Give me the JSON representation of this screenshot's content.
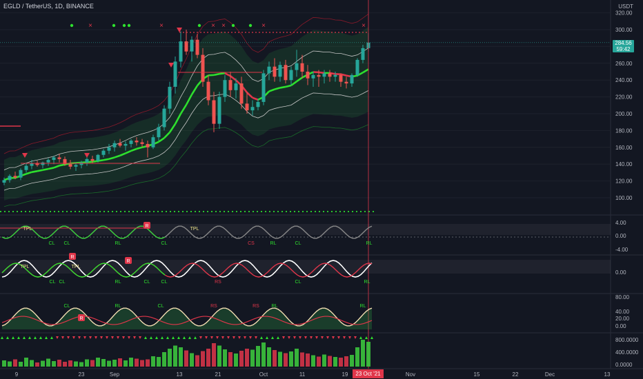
{
  "header": {
    "symbol_title": "EGLD / TetherUS, 1D, BINANCE",
    "currency": "USDT"
  },
  "last_price": {
    "price": "284.56",
    "countdown": "59:42"
  },
  "cursor_date": "23 Oct '21",
  "colors": {
    "background": "#131722",
    "up": "#26a69a",
    "down": "#ef5350",
    "ma_green": "#2ee02e",
    "ma_red": "#e0364a"
  },
  "osc_labels": {
    "p1": [
      {
        "t": "TPL",
        "c": "#f0e68c"
      },
      {
        "t": "CL",
        "c": "#2ee02e"
      },
      {
        "t": "CL",
        "c": "#2ee02e"
      },
      {
        "t": "RL",
        "c": "#2ee02e"
      },
      {
        "t": "CL",
        "c": "#2ee02e"
      },
      {
        "t": "TPL",
        "c": "#f0e68c"
      },
      {
        "t": "CS",
        "c": "#e0364a"
      },
      {
        "t": "RL",
        "c": "#2ee02e"
      },
      {
        "t": "CL",
        "c": "#2ee02e"
      },
      {
        "t": "RL",
        "c": "#2ee02e"
      }
    ],
    "p2": [
      {
        "t": "TPL",
        "c": "#f0e68c"
      },
      {
        "t": "TPL",
        "c": "#f0e68c"
      },
      {
        "t": "CL",
        "c": "#2ee02e"
      },
      {
        "t": "CL",
        "c": "#2ee02e"
      },
      {
        "t": "RL",
        "c": "#2ee02e"
      },
      {
        "t": "CL",
        "c": "#2ee02e"
      },
      {
        "t": "CL",
        "c": "#2ee02e"
      },
      {
        "t": "RS",
        "c": "#e0364a"
      },
      {
        "t": "CL",
        "c": "#2ee02e"
      },
      {
        "t": "RL",
        "c": "#2ee02e"
      }
    ],
    "p3": [
      {
        "t": "CL",
        "c": "#2ee02e"
      },
      {
        "t": "RL",
        "c": "#2ee02e"
      },
      {
        "t": "CL",
        "c": "#2ee02e"
      },
      {
        "t": "RS",
        "c": "#e0364a"
      },
      {
        "t": "RS",
        "c": "#e0364a"
      },
      {
        "t": "RL",
        "c": "#2ee02e"
      },
      {
        "t": "RL",
        "c": "#2ee02e"
      }
    ],
    "badge_r": "R"
  },
  "chart_data": {
    "type": "candlestick",
    "symbol": "EGLD / TetherUS",
    "timeframe": "1D",
    "exchange": "BINANCE",
    "price_axis": {
      "ticks": [
        "320.00",
        "300.00",
        "280.00",
        "260.00",
        "240.00",
        "220.00",
        "200.00",
        "180.00",
        "160.00",
        "140.00",
        "120.00",
        "100.00"
      ],
      "ylim": [
        83,
        332
      ]
    },
    "x_axis_ticks": [
      "9",
      "23",
      "Sep",
      "13",
      "21",
      "Oct",
      "11",
      "19",
      "Nov",
      "15",
      "22",
      "Dec",
      "13"
    ],
    "candles_ohlc": [
      [
        118,
        124,
        115,
        121
      ],
      [
        121,
        128,
        118,
        126
      ],
      [
        126,
        131,
        122,
        124
      ],
      [
        124,
        135,
        121,
        133
      ],
      [
        133,
        142,
        130,
        138
      ],
      [
        138,
        145,
        134,
        141
      ],
      [
        141,
        144,
        137,
        139
      ],
      [
        139,
        143,
        135,
        142
      ],
      [
        142,
        147,
        138,
        145
      ],
      [
        145,
        150,
        140,
        148
      ],
      [
        148,
        152,
        142,
        146
      ],
      [
        146,
        149,
        138,
        140
      ],
      [
        140,
        145,
        134,
        137
      ],
      [
        137,
        142,
        132,
        139
      ],
      [
        139,
        144,
        135,
        142
      ],
      [
        142,
        148,
        138,
        146
      ],
      [
        146,
        150,
        141,
        144
      ],
      [
        144,
        152,
        142,
        151
      ],
      [
        151,
        158,
        148,
        156
      ],
      [
        156,
        164,
        152,
        160
      ],
      [
        160,
        168,
        155,
        165
      ],
      [
        165,
        170,
        160,
        162
      ],
      [
        162,
        167,
        156,
        164
      ],
      [
        164,
        170,
        160,
        168
      ],
      [
        168,
        172,
        162,
        166
      ],
      [
        166,
        170,
        160,
        164
      ],
      [
        164,
        168,
        148,
        160
      ],
      [
        160,
        175,
        158,
        172
      ],
      [
        172,
        188,
        168,
        184
      ],
      [
        184,
        210,
        180,
        206
      ],
      [
        206,
        238,
        200,
        232
      ],
      [
        232,
        268,
        224,
        262
      ],
      [
        262,
        298,
        255,
        286
      ],
      [
        286,
        300,
        270,
        274
      ],
      [
        274,
        292,
        262,
        288
      ],
      [
        288,
        295,
        266,
        270
      ],
      [
        270,
        278,
        232,
        238
      ],
      [
        238,
        246,
        210,
        216
      ],
      [
        216,
        226,
        178,
        188
      ],
      [
        188,
        226,
        182,
        220
      ],
      [
        220,
        246,
        214,
        240
      ],
      [
        240,
        250,
        220,
        228
      ],
      [
        228,
        242,
        218,
        236
      ],
      [
        236,
        244,
        206,
        212
      ],
      [
        212,
        226,
        200,
        204
      ],
      [
        204,
        216,
        198,
        208
      ],
      [
        208,
        218,
        204,
        214
      ],
      [
        214,
        252,
        210,
        248
      ],
      [
        248,
        262,
        240,
        256
      ],
      [
        256,
        266,
        238,
        244
      ],
      [
        244,
        262,
        238,
        258
      ],
      [
        258,
        264,
        236,
        240
      ],
      [
        240,
        256,
        234,
        252
      ],
      [
        252,
        276,
        244,
        260
      ],
      [
        260,
        270,
        242,
        250
      ],
      [
        250,
        258,
        234,
        242
      ],
      [
        242,
        250,
        232,
        246
      ],
      [
        246,
        252,
        232,
        244
      ],
      [
        244,
        252,
        236,
        248
      ],
      [
        248,
        252,
        238,
        244
      ],
      [
        244,
        250,
        238,
        246
      ],
      [
        246,
        248,
        232,
        238
      ],
      [
        238,
        244,
        230,
        236
      ],
      [
        236,
        248,
        232,
        246
      ],
      [
        246,
        266,
        244,
        264
      ],
      [
        264,
        282,
        260,
        278
      ],
      [
        278,
        296,
        274,
        284.56
      ]
    ],
    "volume": [
      180,
      150,
      210,
      140,
      260,
      190,
      120,
      170,
      230,
      160,
      200,
      140,
      180,
      150,
      130,
      210,
      190,
      260,
      220,
      170,
      200,
      240,
      180,
      260,
      230,
      190,
      210,
      300,
      280,
      420,
      520,
      610,
      560,
      470,
      390,
      330,
      450,
      520,
      680,
      610,
      500,
      420,
      380,
      460,
      520,
      490,
      600,
      700,
      560,
      480,
      430,
      390,
      440,
      520,
      410,
      380,
      330,
      290,
      350,
      310,
      280,
      260,
      300,
      340,
      560,
      780,
      720
    ]
  }
}
